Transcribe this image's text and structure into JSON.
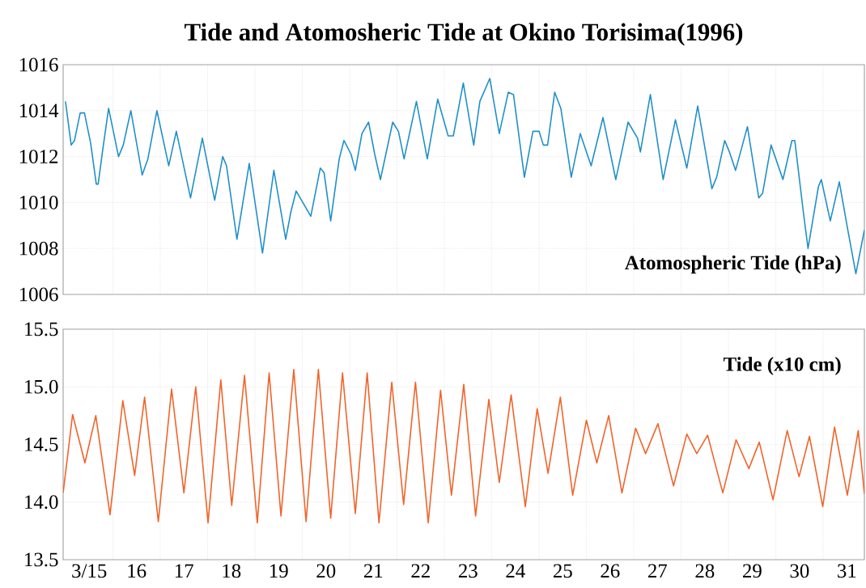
{
  "chart_data": [
    {
      "type": "line",
      "title": "Tide and Atomosheric Tide at Okino Torisima(1996)",
      "annotations": [
        "Atomospheric Tide (hPa)"
      ],
      "color": "#2090c8",
      "grid": true,
      "tick_labels": "y",
      "xlim": [
        14.95,
        31.87
      ],
      "ylim": [
        1006,
        1016
      ],
      "yticks": [
        1006,
        1008,
        1010,
        1012,
        1014,
        1016
      ],
      "xticks": [
        {
          "value": 16,
          "label": null
        },
        {
          "value": 17,
          "label": null
        },
        {
          "value": 18,
          "label": null
        },
        {
          "value": 19,
          "label": null
        },
        {
          "value": 20,
          "label": null
        },
        {
          "value": 21,
          "label": null
        },
        {
          "value": 22,
          "label": null
        },
        {
          "value": 23,
          "label": null
        },
        {
          "value": 24,
          "label": null
        },
        {
          "value": 25,
          "label": null
        },
        {
          "value": 26,
          "label": null
        },
        {
          "value": 27,
          "label": null
        },
        {
          "value": 28,
          "label": null
        },
        {
          "value": 29,
          "label": null
        },
        {
          "value": 30,
          "label": null
        },
        {
          "value": 31,
          "label": null
        }
      ],
      "x": [
        15.0,
        15.12,
        15.19,
        15.31,
        15.4,
        15.53,
        15.65,
        15.69,
        15.78,
        15.91,
        16.12,
        16.22,
        16.38,
        16.62,
        16.74,
        16.93,
        17.18,
        17.34,
        17.64,
        17.89,
        18.15,
        18.32,
        18.4,
        18.62,
        18.88,
        19.16,
        19.4,
        19.65,
        19.76,
        19.87,
        20.18,
        20.38,
        20.46,
        20.6,
        20.78,
        20.88,
        21.03,
        21.12,
        21.26,
        21.4,
        21.53,
        21.65,
        21.91,
        22.03,
        22.15,
        22.41,
        22.64,
        22.86,
        23.08,
        23.19,
        23.4,
        23.62,
        23.75,
        23.96,
        24.16,
        24.35,
        24.46,
        24.69,
        24.87,
        25.0,
        25.09,
        25.18,
        25.33,
        25.46,
        25.68,
        25.87,
        26.1,
        26.35,
        26.62,
        26.88,
        27.08,
        27.14,
        27.35,
        27.62,
        27.88,
        28.12,
        28.35,
        28.65,
        28.75,
        28.92,
        29.02,
        29.15,
        29.4,
        29.64,
        29.72,
        29.9,
        30.15,
        30.34,
        30.4,
        30.58,
        30.68,
        30.9,
        30.96,
        31.15,
        31.34,
        31.52,
        31.69,
        31.87
      ],
      "values": [
        1014.4,
        1012.5,
        1012.7,
        1013.9,
        1013.9,
        1012.6,
        1010.8,
        1010.8,
        1012.2,
        1014.1,
        1012.0,
        1012.5,
        1014.0,
        1011.2,
        1011.9,
        1014.0,
        1011.6,
        1013.1,
        1010.2,
        1012.8,
        1010.1,
        1012.0,
        1011.6,
        1008.4,
        1011.7,
        1007.8,
        1011.4,
        1008.4,
        1009.6,
        1010.5,
        1009.4,
        1011.5,
        1011.3,
        1009.2,
        1011.9,
        1012.7,
        1012.1,
        1011.4,
        1013.0,
        1013.5,
        1012.1,
        1011.0,
        1013.5,
        1013.1,
        1011.9,
        1014.4,
        1011.9,
        1014.5,
        1012.9,
        1012.9,
        1015.2,
        1012.5,
        1014.4,
        1015.4,
        1013.0,
        1014.8,
        1014.7,
        1011.1,
        1013.1,
        1013.1,
        1012.5,
        1012.5,
        1014.8,
        1014.1,
        1011.1,
        1013.0,
        1011.6,
        1013.7,
        1011.0,
        1013.5,
        1012.8,
        1012.2,
        1014.7,
        1011.0,
        1013.6,
        1011.5,
        1014.2,
        1010.6,
        1011.1,
        1012.7,
        1012.2,
        1011.4,
        1013.3,
        1010.2,
        1010.4,
        1012.5,
        1011.0,
        1012.7,
        1012.7,
        1009.6,
        1008.0,
        1010.7,
        1011.0,
        1009.2,
        1010.9,
        1008.8,
        1006.9,
        1008.8
      ]
    },
    {
      "type": "line",
      "annotations": [
        "Tide (x10 cm)"
      ],
      "color": "#f0642a",
      "grid": true,
      "xlim": [
        14.95,
        31.87
      ],
      "ylim": [
        13.5,
        15.5
      ],
      "yticks": [
        13.5,
        {
          "value": 14,
          "label": "14.0"
        },
        14.5,
        {
          "value": 15,
          "label": "15.0"
        },
        15.5
      ],
      "xticks": [
        {
          "value": 15.5,
          "label": "3/15"
        },
        {
          "value": 16.5,
          "label": "16"
        },
        {
          "value": 17.5,
          "label": "17"
        },
        {
          "value": 18.5,
          "label": "18"
        },
        {
          "value": 19.5,
          "label": "19"
        },
        {
          "value": 20.5,
          "label": "20"
        },
        {
          "value": 21.5,
          "label": "21"
        },
        {
          "value": 22.5,
          "label": "22"
        },
        {
          "value": 23.5,
          "label": "23"
        },
        {
          "value": 24.5,
          "label": "24"
        },
        {
          "value": 25.5,
          "label": "25"
        },
        {
          "value": 26.5,
          "label": "26"
        },
        {
          "value": 27.5,
          "label": "27"
        },
        {
          "value": 28.5,
          "label": "28"
        },
        {
          "value": 29.5,
          "label": "29"
        },
        {
          "value": 30.5,
          "label": "30"
        },
        {
          "value": 31.5,
          "label": "31"
        },
        {
          "value": 16,
          "label": null
        },
        {
          "value": 17,
          "label": null
        },
        {
          "value": 18,
          "label": null
        },
        {
          "value": 19,
          "label": null
        },
        {
          "value": 20,
          "label": null
        },
        {
          "value": 21,
          "label": null
        },
        {
          "value": 22,
          "label": null
        },
        {
          "value": 23,
          "label": null
        },
        {
          "value": 24,
          "label": null
        },
        {
          "value": 25,
          "label": null
        },
        {
          "value": 26,
          "label": null
        },
        {
          "value": 27,
          "label": null
        },
        {
          "value": 28,
          "label": null
        },
        {
          "value": 29,
          "label": null
        },
        {
          "value": 30,
          "label": null
        },
        {
          "value": 31,
          "label": null
        }
      ],
      "x": [
        14.95,
        15.15,
        15.41,
        15.64,
        15.94,
        16.21,
        16.46,
        16.67,
        16.96,
        17.24,
        17.5,
        17.75,
        18.01,
        18.28,
        18.51,
        18.78,
        19.05,
        19.3,
        19.55,
        19.82,
        20.08,
        20.34,
        20.6,
        20.85,
        21.12,
        21.37,
        21.62,
        21.89,
        22.14,
        22.39,
        22.66,
        22.92,
        23.15,
        23.41,
        23.66,
        23.94,
        24.16,
        24.41,
        24.71,
        24.96,
        25.19,
        25.45,
        25.71,
        26.0,
        26.22,
        26.47,
        26.75,
        27.04,
        27.25,
        27.51,
        27.84,
        28.12,
        28.33,
        28.56,
        28.88,
        29.16,
        29.43,
        29.65,
        29.94,
        30.24,
        30.49,
        30.71,
        30.99,
        31.24,
        31.51,
        31.74,
        31.87
      ],
      "values": [
        14.08,
        14.76,
        14.34,
        14.75,
        13.89,
        14.88,
        14.23,
        14.91,
        13.83,
        14.98,
        14.08,
        15.0,
        13.82,
        15.06,
        13.97,
        15.1,
        13.82,
        15.12,
        13.88,
        15.15,
        13.83,
        15.15,
        13.86,
        15.12,
        13.9,
        15.12,
        13.82,
        15.04,
        13.98,
        15.04,
        13.82,
        14.97,
        14.06,
        15.02,
        13.88,
        14.89,
        14.17,
        14.93,
        13.96,
        14.81,
        14.25,
        14.91,
        14.06,
        14.71,
        14.34,
        14.75,
        14.08,
        14.64,
        14.42,
        14.68,
        14.14,
        14.59,
        14.42,
        14.58,
        14.08,
        14.54,
        14.29,
        14.52,
        14.02,
        14.62,
        14.22,
        14.57,
        13.96,
        14.65,
        14.06,
        14.62,
        14.07
      ]
    }
  ]
}
